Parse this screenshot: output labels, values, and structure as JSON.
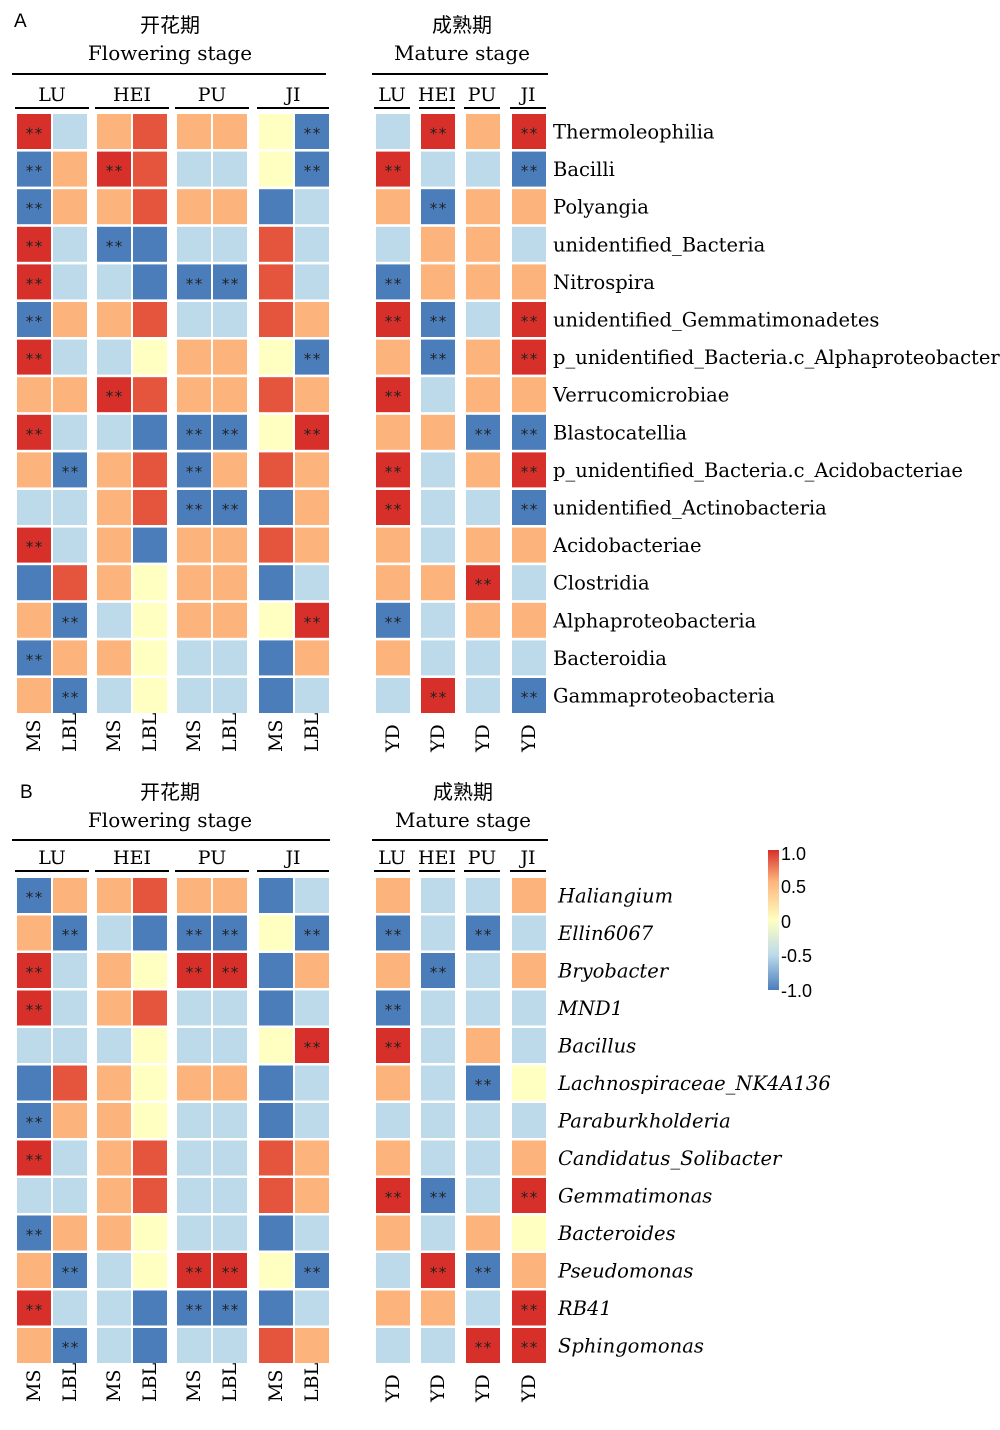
{
  "colors": {
    "strong_pos": "#d7302b",
    "mod_pos": "#e5543c",
    "weak_pos": "#fdb37c",
    "near_zero": "#ffffc2",
    "weak_neg": "#bcdaea",
    "strong_neg": "#4c7dbb"
  },
  "colorbar": {
    "ticks": [
      "1.0",
      "0.5",
      "0",
      "-0.5",
      "-1.0"
    ]
  },
  "panels": [
    {
      "letter": "A",
      "flower_title_cn": "开花期",
      "flower_title_en": "Flowering stage",
      "mature_title_cn": "成熟期",
      "mature_title_en": "Mature stage",
      "italic": false,
      "flower_groups": [
        "LU",
        "HEI",
        "PU",
        "JI"
      ],
      "flower_cols": [
        "MS",
        "LBL",
        "MS",
        "LBL",
        "MS",
        "LBL",
        "MS",
        "LBL"
      ],
      "mature_groups": [
        "LU",
        "HEI",
        "PU",
        "JI"
      ],
      "mature_cols": [
        "YD",
        "YD",
        "YD",
        "YD"
      ],
      "rows": [
        "Thermoleophilia",
        "Bacilli",
        "Polyangia",
        "unidentified_Bacteria",
        "Nitrospira",
        "unidentified_Gemmatimonadetes",
        "p_unidentified_Bacteria.c_Alphaproteobacteria",
        "Verrucomicrobiae",
        "Blastocatellia",
        "p_unidentified_Bacteria.c_Acidobacteriae",
        "unidentified_Actinobacteria",
        "Acidobacteriae",
        "Clostridia",
        "Alphaproteobacteria",
        "Bacteroidia",
        "Gammaproteobacteria"
      ],
      "flower_values": [
        [
          0.95,
          -0.3,
          0.45,
          0.8,
          0.45,
          0.45,
          0.05,
          -0.95
        ],
        [
          -0.95,
          0.45,
          0.95,
          0.8,
          -0.3,
          -0.3,
          0.05,
          -0.95
        ],
        [
          -0.95,
          0.45,
          0.45,
          0.8,
          0.45,
          0.45,
          -0.7,
          -0.3
        ],
        [
          0.95,
          -0.3,
          -0.95,
          -0.7,
          -0.3,
          -0.3,
          0.8,
          -0.3
        ],
        [
          0.95,
          -0.3,
          -0.3,
          -0.7,
          -0.95,
          -0.95,
          0.8,
          -0.3
        ],
        [
          -0.95,
          0.45,
          0.45,
          0.8,
          -0.3,
          -0.3,
          0.8,
          0.45
        ],
        [
          0.95,
          -0.3,
          -0.3,
          0.05,
          0.45,
          0.45,
          0.05,
          -0.95
        ],
        [
          0.45,
          0.45,
          0.95,
          0.8,
          0.45,
          0.45,
          0.8,
          0.45
        ],
        [
          0.95,
          -0.3,
          -0.3,
          -0.7,
          -0.95,
          -0.95,
          0.05,
          0.95
        ],
        [
          0.45,
          -0.95,
          0.45,
          0.8,
          -0.95,
          0.45,
          0.8,
          0.45
        ],
        [
          -0.3,
          -0.3,
          0.45,
          0.8,
          -0.95,
          -0.95,
          -0.7,
          0.45
        ],
        [
          0.95,
          -0.3,
          0.45,
          -0.7,
          0.45,
          0.45,
          0.8,
          0.45
        ],
        [
          -0.7,
          0.8,
          0.45,
          0.05,
          0.45,
          0.45,
          -0.7,
          -0.3
        ],
        [
          0.45,
          -0.95,
          -0.3,
          0.05,
          0.45,
          0.45,
          0.05,
          0.95
        ],
        [
          -0.95,
          0.45,
          0.45,
          0.05,
          -0.3,
          -0.3,
          -0.7,
          0.45
        ],
        [
          0.45,
          -0.95,
          -0.3,
          0.05,
          -0.3,
          -0.3,
          -0.7,
          -0.3
        ]
      ],
      "flower_sig": [
        [
          1,
          0,
          0,
          0,
          0,
          0,
          0,
          1
        ],
        [
          1,
          0,
          1,
          0,
          0,
          0,
          0,
          1
        ],
        [
          1,
          0,
          0,
          0,
          0,
          0,
          0,
          0
        ],
        [
          1,
          0,
          1,
          0,
          0,
          0,
          0,
          0
        ],
        [
          1,
          0,
          0,
          0,
          1,
          1,
          0,
          0
        ],
        [
          1,
          0,
          0,
          0,
          0,
          0,
          0,
          0
        ],
        [
          1,
          0,
          0,
          0,
          0,
          0,
          0,
          1
        ],
        [
          0,
          0,
          1,
          0,
          0,
          0,
          0,
          0
        ],
        [
          1,
          0,
          0,
          0,
          1,
          1,
          0,
          1
        ],
        [
          0,
          1,
          0,
          0,
          1,
          0,
          0,
          0
        ],
        [
          0,
          0,
          0,
          0,
          1,
          1,
          0,
          0
        ],
        [
          1,
          0,
          0,
          0,
          0,
          0,
          0,
          0
        ],
        [
          0,
          0,
          0,
          0,
          0,
          0,
          0,
          0
        ],
        [
          0,
          1,
          0,
          0,
          0,
          0,
          0,
          1
        ],
        [
          1,
          0,
          0,
          0,
          0,
          0,
          0,
          0
        ],
        [
          0,
          1,
          0,
          0,
          0,
          0,
          0,
          0
        ]
      ],
      "mature_values": [
        [
          -0.3,
          0.95,
          0.45,
          0.95
        ],
        [
          0.95,
          -0.3,
          -0.3,
          -0.95
        ],
        [
          0.45,
          -0.95,
          0.45,
          0.45
        ],
        [
          -0.3,
          0.45,
          0.45,
          -0.3
        ],
        [
          -0.95,
          0.45,
          0.45,
          0.45
        ],
        [
          0.95,
          -0.95,
          -0.3,
          0.95
        ],
        [
          0.45,
          -0.95,
          0.45,
          0.95
        ],
        [
          0.95,
          -0.3,
          0.45,
          0.45
        ],
        [
          0.45,
          0.45,
          -0.95,
          -0.95
        ],
        [
          0.95,
          -0.3,
          0.45,
          0.95
        ],
        [
          0.95,
          -0.3,
          -0.3,
          -0.95
        ],
        [
          0.45,
          -0.3,
          0.45,
          0.45
        ],
        [
          0.45,
          0.45,
          0.95,
          -0.3
        ],
        [
          -0.95,
          -0.3,
          0.45,
          0.45
        ],
        [
          0.45,
          -0.3,
          -0.3,
          -0.3
        ],
        [
          -0.3,
          0.95,
          -0.3,
          -0.95
        ]
      ],
      "mature_sig": [
        [
          0,
          1,
          0,
          1
        ],
        [
          1,
          0,
          0,
          1
        ],
        [
          0,
          1,
          0,
          0
        ],
        [
          0,
          0,
          0,
          0
        ],
        [
          1,
          0,
          0,
          0
        ],
        [
          1,
          1,
          0,
          1
        ],
        [
          0,
          1,
          0,
          1
        ],
        [
          1,
          0,
          0,
          0
        ],
        [
          0,
          0,
          1,
          1
        ],
        [
          1,
          0,
          0,
          1
        ],
        [
          1,
          0,
          0,
          1
        ],
        [
          0,
          0,
          0,
          0
        ],
        [
          0,
          0,
          1,
          0
        ],
        [
          1,
          0,
          0,
          0
        ],
        [
          0,
          0,
          0,
          0
        ],
        [
          0,
          1,
          0,
          1
        ]
      ]
    },
    {
      "letter": "B",
      "flower_title_cn": "开花期",
      "flower_title_en": "Flowering stage",
      "mature_title_cn": "成熟期",
      "mature_title_en": "Mature stage",
      "italic": true,
      "flower_groups": [
        "LU",
        "HEI",
        "PU",
        "JI"
      ],
      "flower_cols": [
        "MS",
        "LBL",
        "MS",
        "LBL",
        "MS",
        "LBL",
        "MS",
        "LBL"
      ],
      "mature_groups": [
        "LU",
        "HEI",
        "PU",
        "JI"
      ],
      "mature_cols": [
        "YD",
        "YD",
        "YD",
        "YD"
      ],
      "rows": [
        "Haliangium",
        "Ellin6067",
        "Bryobacter",
        "MND1",
        "Bacillus",
        "Lachnospiraceae_NK4A136",
        "Paraburkholderia",
        "Candidatus_Solibacter",
        "Gemmatimonas",
        "Bacteroides",
        "Pseudomonas",
        "RB41",
        "Sphingomonas"
      ],
      "flower_values": [
        [
          -0.95,
          0.45,
          0.45,
          0.8,
          0.45,
          0.45,
          -0.7,
          -0.3
        ],
        [
          0.45,
          -0.95,
          -0.3,
          -0.7,
          -0.95,
          -0.95,
          0.05,
          -0.95
        ],
        [
          0.95,
          -0.3,
          0.45,
          0.05,
          0.95,
          0.95,
          -0.7,
          0.45
        ],
        [
          0.95,
          -0.3,
          0.45,
          0.8,
          -0.3,
          -0.3,
          -0.7,
          -0.3
        ],
        [
          -0.3,
          -0.3,
          -0.3,
          0.05,
          -0.3,
          -0.3,
          0.05,
          0.95
        ],
        [
          -0.7,
          0.8,
          0.45,
          0.05,
          0.45,
          0.45,
          -0.7,
          -0.3
        ],
        [
          -0.95,
          0.45,
          0.45,
          0.05,
          -0.3,
          -0.3,
          -0.7,
          -0.3
        ],
        [
          0.95,
          -0.3,
          0.45,
          0.8,
          -0.3,
          -0.3,
          0.8,
          0.45
        ],
        [
          -0.3,
          -0.3,
          0.45,
          0.8,
          -0.3,
          -0.3,
          0.8,
          0.45
        ],
        [
          -0.95,
          0.45,
          0.45,
          0.05,
          -0.3,
          -0.3,
          -0.7,
          -0.3
        ],
        [
          0.45,
          -0.95,
          -0.3,
          0.05,
          0.95,
          0.95,
          0.05,
          -0.95
        ],
        [
          0.95,
          -0.3,
          -0.3,
          -0.7,
          -0.95,
          -0.95,
          -0.7,
          -0.3
        ],
        [
          0.45,
          -0.95,
          -0.3,
          -0.7,
          -0.3,
          -0.3,
          0.8,
          0.45
        ]
      ],
      "flower_sig": [
        [
          1,
          0,
          0,
          0,
          0,
          0,
          0,
          0
        ],
        [
          0,
          1,
          0,
          0,
          1,
          1,
          0,
          1
        ],
        [
          1,
          0,
          0,
          0,
          1,
          1,
          0,
          0
        ],
        [
          1,
          0,
          0,
          0,
          0,
          0,
          0,
          0
        ],
        [
          0,
          0,
          0,
          0,
          0,
          0,
          0,
          1
        ],
        [
          0,
          0,
          0,
          0,
          0,
          0,
          0,
          0
        ],
        [
          1,
          0,
          0,
          0,
          0,
          0,
          0,
          0
        ],
        [
          1,
          0,
          0,
          0,
          0,
          0,
          0,
          0
        ],
        [
          0,
          0,
          0,
          0,
          0,
          0,
          0,
          0
        ],
        [
          1,
          0,
          0,
          0,
          0,
          0,
          0,
          0
        ],
        [
          0,
          1,
          0,
          0,
          1,
          1,
          0,
          1
        ],
        [
          1,
          0,
          0,
          0,
          1,
          1,
          0,
          0
        ],
        [
          0,
          1,
          0,
          0,
          0,
          0,
          0,
          0
        ]
      ],
      "mature_values": [
        [
          0.45,
          -0.3,
          -0.3,
          0.45
        ],
        [
          -0.95,
          -0.3,
          -0.95,
          -0.3
        ],
        [
          0.45,
          -0.95,
          -0.3,
          0.45
        ],
        [
          -0.95,
          -0.3,
          -0.3,
          -0.3
        ],
        [
          0.95,
          -0.3,
          0.45,
          -0.3
        ],
        [
          0.45,
          -0.3,
          -0.95,
          0.05
        ],
        [
          -0.3,
          -0.3,
          -0.3,
          -0.3
        ],
        [
          0.45,
          -0.3,
          -0.3,
          0.45
        ],
        [
          0.95,
          -0.95,
          -0.3,
          0.95
        ],
        [
          0.45,
          -0.3,
          0.45,
          0.05
        ],
        [
          -0.3,
          0.95,
          -0.95,
          0.45
        ],
        [
          0.45,
          0.45,
          -0.3,
          0.95
        ],
        [
          -0.3,
          -0.3,
          0.95,
          0.95
        ]
      ],
      "mature_sig": [
        [
          0,
          0,
          0,
          0
        ],
        [
          1,
          0,
          1,
          0
        ],
        [
          0,
          1,
          0,
          0
        ],
        [
          1,
          0,
          0,
          0
        ],
        [
          1,
          0,
          0,
          0
        ],
        [
          0,
          0,
          1,
          0
        ],
        [
          0,
          0,
          0,
          0
        ],
        [
          0,
          0,
          0,
          0
        ],
        [
          1,
          1,
          0,
          1
        ],
        [
          0,
          0,
          0,
          0
        ],
        [
          0,
          1,
          1,
          0
        ],
        [
          0,
          0,
          0,
          1
        ],
        [
          0,
          0,
          1,
          1
        ]
      ]
    }
  ],
  "chart_data": [
    {
      "type": "heatmap",
      "panel": "A",
      "title": "开花期 Flowering stage / 成熟期 Mature stage",
      "value_range": [
        -1.0,
        1.0
      ],
      "significance_marker": "**",
      "note": "values estimated from cell colors; see panels[0] for full matrices"
    },
    {
      "type": "heatmap",
      "panel": "B",
      "title": "开花期 Flowering stage / 成熟期 Mature stage",
      "value_range": [
        -1.0,
        1.0
      ],
      "significance_marker": "**",
      "note": "values estimated from cell colors; see panels[1] for full matrices"
    }
  ]
}
